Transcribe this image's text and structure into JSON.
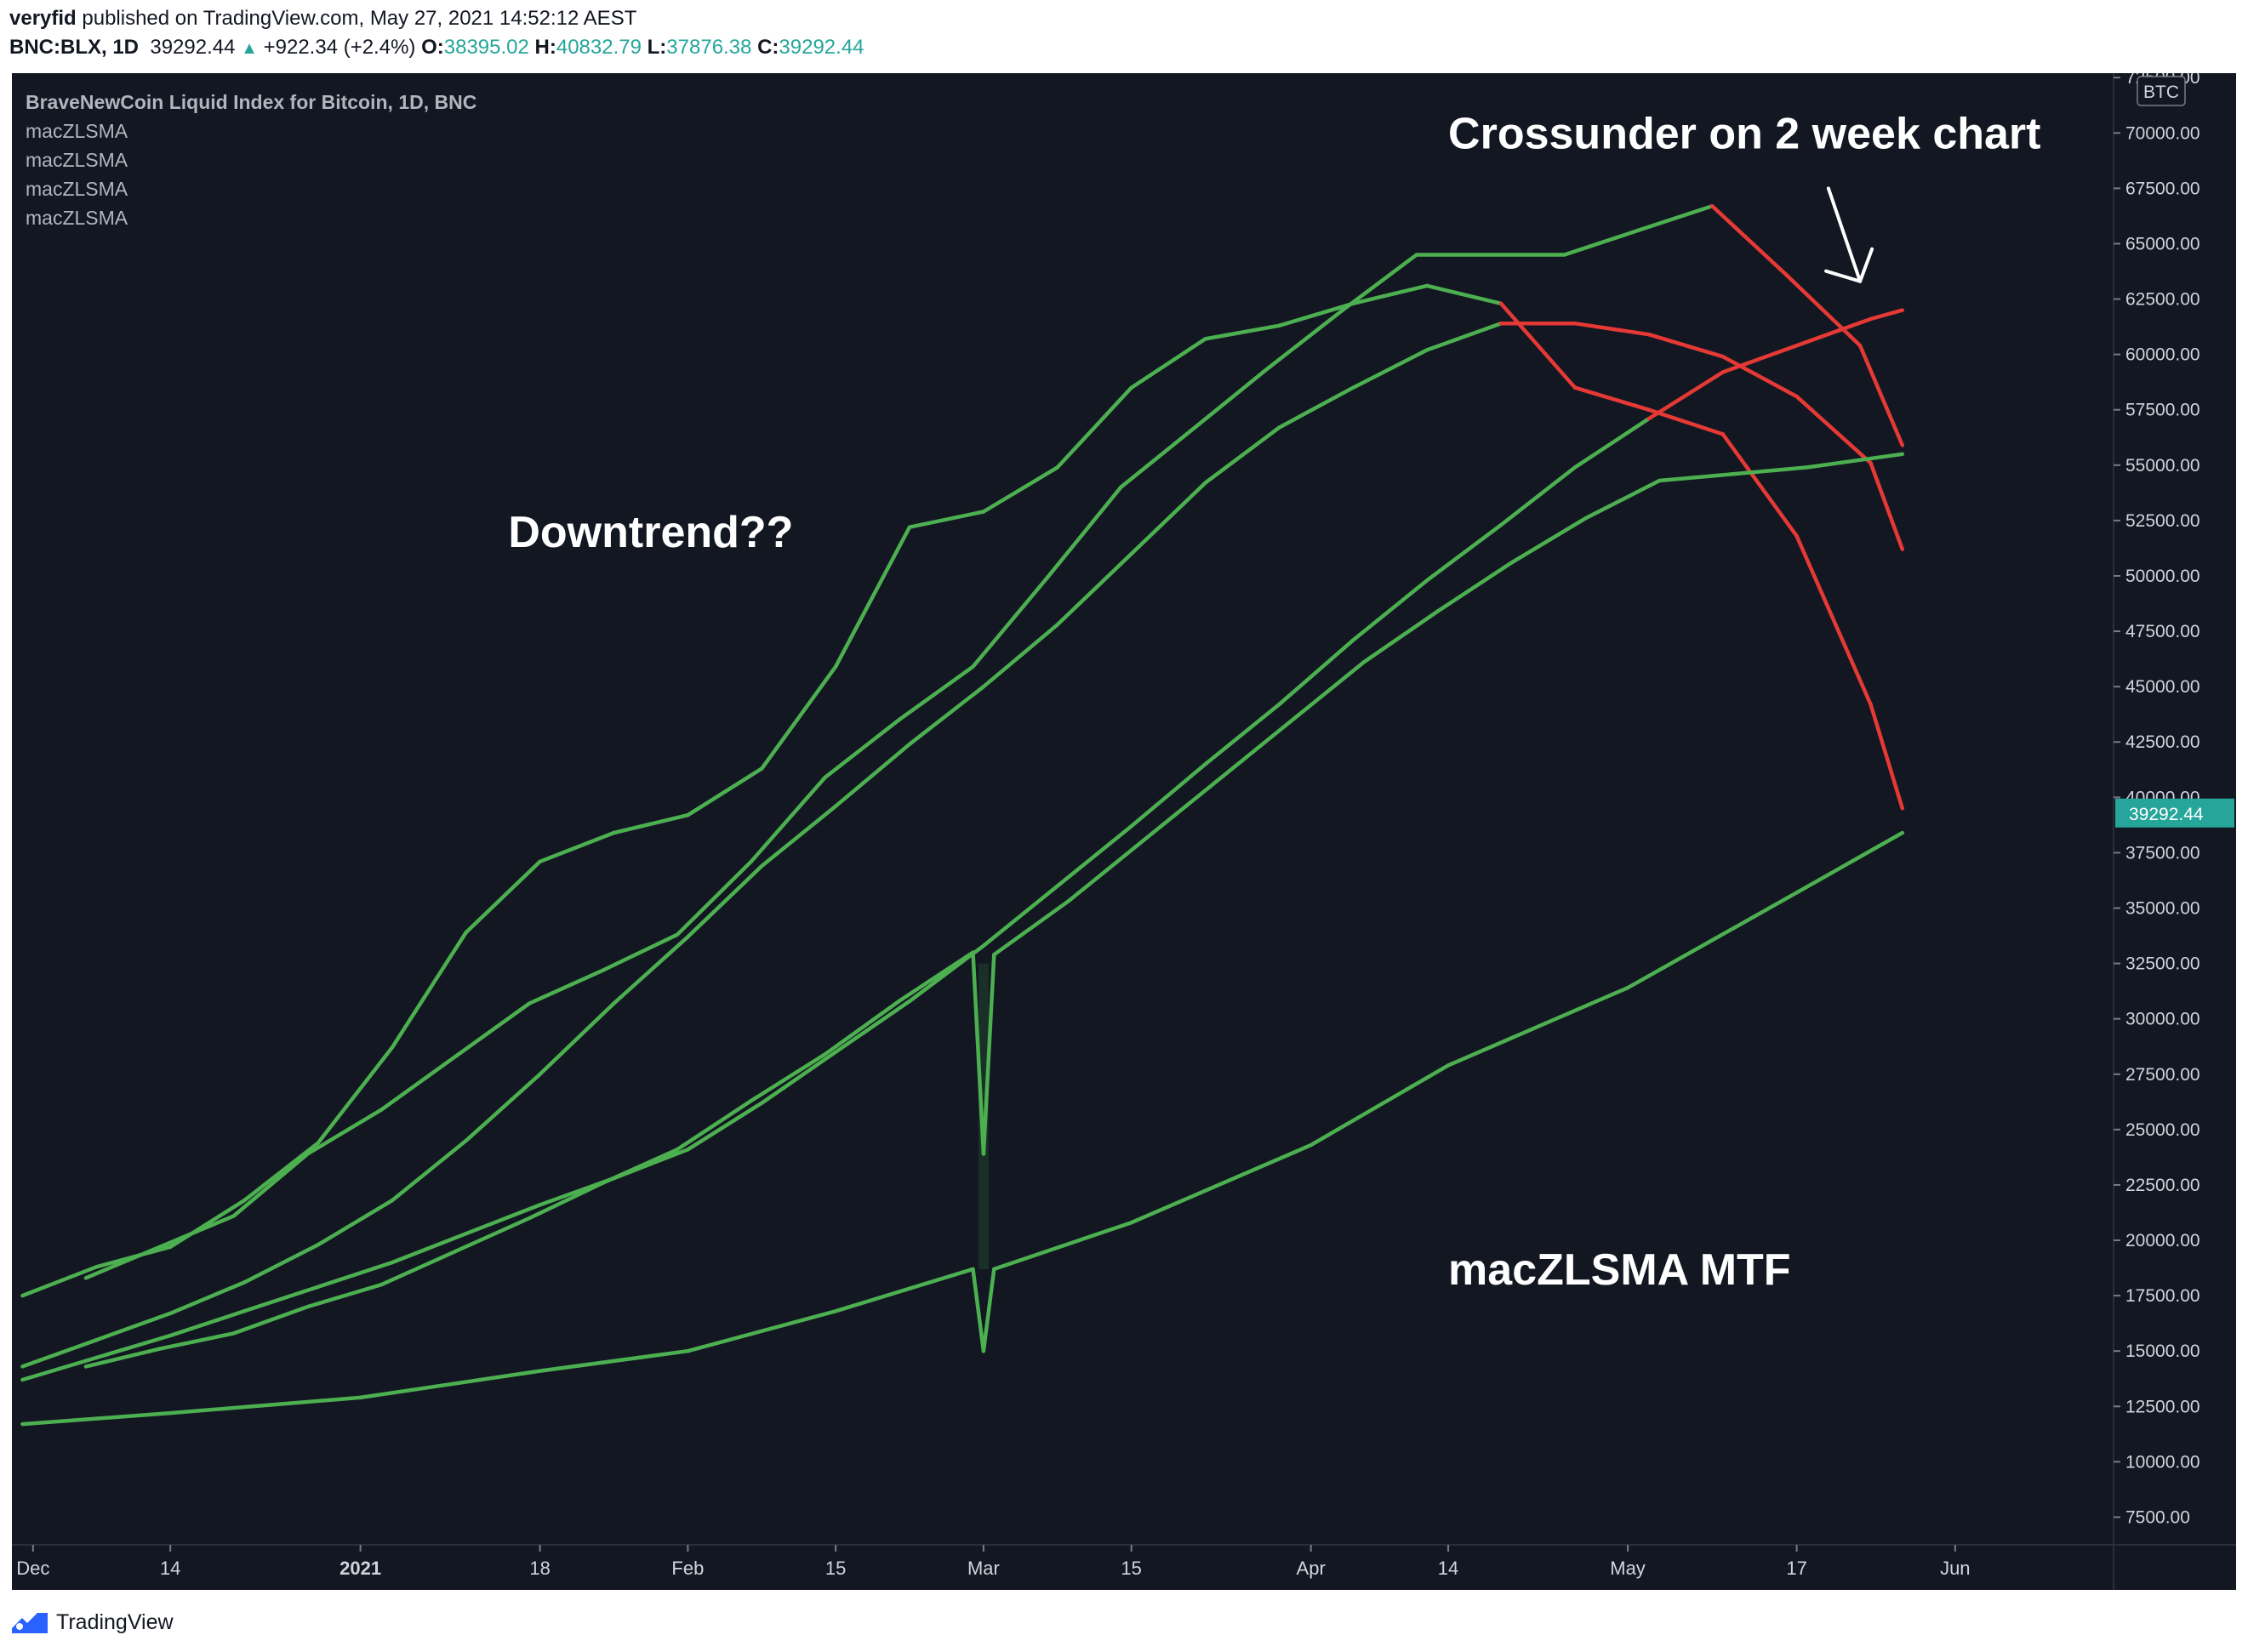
{
  "header": {
    "author": "veryfid",
    "published": "published on TradingView.com, May 27, 2021 14:52:12 AEST",
    "symbol": "BNC:BLX, 1D",
    "last": "39292.44",
    "change": "+922.34 (+2.4%)",
    "o_label": "O:",
    "o_value": "38395.02",
    "h_label": "H:",
    "h_value": "40832.79",
    "l_label": "L:",
    "l_value": "37876.38",
    "c_label": "C:",
    "c_value": "39292.44"
  },
  "footer": {
    "brand": "TradingView"
  },
  "colors": {
    "background": "#131722",
    "bull": "#4caf50",
    "bear": "#e53935",
    "price_tag": "#26a69a"
  },
  "chart_data": {
    "type": "line",
    "title": "BraveNewCoin Liquid Index for Bitcoin, 1D, BNC",
    "legend": [
      "macZLSMA",
      "macZLSMA",
      "macZLSMA",
      "macZLSMA"
    ],
    "currency_label": "BTC",
    "last_price_label": "39292.44",
    "last_price": 39292.44,
    "ylim": [
      6250,
      72700
    ],
    "y_ticks": [
      72500,
      70000,
      67500,
      65000,
      62500,
      60000,
      57500,
      55000,
      52500,
      50000,
      47500,
      45000,
      42500,
      40000,
      37500,
      35000,
      32500,
      30000,
      27500,
      25000,
      22500,
      20000,
      17500,
      15000,
      12500,
      10000,
      7500
    ],
    "y_tick_labels": [
      "72500.00",
      "70000.00",
      "67500.00",
      "65000.00",
      "62500.00",
      "60000.00",
      "57500.00",
      "55000.00",
      "52500.00",
      "50000.00",
      "47500.00",
      "45000.00",
      "42500.00",
      "40000.00",
      "37500.00",
      "35000.00",
      "32500.00",
      "30000.00",
      "27500.00",
      "25000.00",
      "22500.00",
      "20000.00",
      "17500.00",
      "15000.00",
      "12500.00",
      "10000.00",
      "7500.00"
    ],
    "x_range": [
      "2020-11-29",
      "2021-06-16"
    ],
    "x_ticks": [
      {
        "date": "2020-12-01",
        "label": "Dec",
        "bold": false
      },
      {
        "date": "2020-12-14",
        "label": "14",
        "bold": false
      },
      {
        "date": "2021-01-01",
        "label": "2021",
        "bold": true
      },
      {
        "date": "2021-01-18",
        "label": "18",
        "bold": false
      },
      {
        "date": "2021-02-01",
        "label": "Feb",
        "bold": false
      },
      {
        "date": "2021-02-15",
        "label": "15",
        "bold": false
      },
      {
        "date": "2021-03-01",
        "label": "Mar",
        "bold": false
      },
      {
        "date": "2021-03-15",
        "label": "15",
        "bold": false
      },
      {
        "date": "2021-04-01",
        "label": "Apr",
        "bold": false
      },
      {
        "date": "2021-04-14",
        "label": "14",
        "bold": false
      },
      {
        "date": "2021-05-01",
        "label": "May",
        "bold": false
      },
      {
        "date": "2021-05-17",
        "label": "17",
        "bold": false
      },
      {
        "date": "2021-06-01",
        "label": "Jun",
        "bold": false
      }
    ],
    "series": [
      {
        "points": [
          [
            "2020-11-30",
            17500,
            "bull"
          ],
          [
            "2020-12-07",
            18800,
            "bull"
          ],
          [
            "2020-12-14",
            19700,
            "bull"
          ],
          [
            "2020-12-21",
            21800,
            "bull"
          ],
          [
            "2020-12-28",
            24400,
            "bull"
          ],
          [
            "2021-01-04",
            28700,
            "bull"
          ],
          [
            "2021-01-11",
            33900,
            "bull"
          ],
          [
            "2021-01-18",
            37100,
            "bull"
          ],
          [
            "2021-01-25",
            38400,
            "bull"
          ],
          [
            "2021-02-01",
            39200,
            "bull"
          ],
          [
            "2021-02-08",
            41300,
            "bull"
          ],
          [
            "2021-02-15",
            45900,
            "bull"
          ],
          [
            "2021-02-22",
            52200,
            "bull"
          ],
          [
            "2021-03-01",
            52900,
            "bull"
          ],
          [
            "2021-03-08",
            54900,
            "bull"
          ],
          [
            "2021-03-15",
            58500,
            "bull"
          ],
          [
            "2021-03-22",
            60700,
            "bull"
          ],
          [
            "2021-03-29",
            61300,
            "bull"
          ],
          [
            "2021-04-05",
            62300,
            "bull"
          ],
          [
            "2021-04-12",
            63100,
            "bull"
          ],
          [
            "2021-04-19",
            62300,
            "bull"
          ],
          [
            "2021-04-26",
            58500,
            "bear"
          ],
          [
            "2021-05-03",
            57500,
            "bear"
          ],
          [
            "2021-05-10",
            56400,
            "bear"
          ],
          [
            "2021-05-17",
            51800,
            "bear"
          ],
          [
            "2021-05-24",
            44200,
            "bear"
          ],
          [
            "2021-05-27",
            39500,
            "bear"
          ]
        ]
      },
      {
        "points": [
          [
            "2020-12-06",
            18300,
            "bull"
          ],
          [
            "2020-12-13",
            19700,
            "bull"
          ],
          [
            "2020-12-20",
            21100,
            "bull"
          ],
          [
            "2020-12-27",
            23900,
            "bull"
          ],
          [
            "2021-01-03",
            25900,
            "bull"
          ],
          [
            "2021-01-10",
            28300,
            "bull"
          ],
          [
            "2021-01-17",
            30700,
            "bull"
          ],
          [
            "2021-01-24",
            32200,
            "bull"
          ],
          [
            "2021-01-31",
            33800,
            "bull"
          ],
          [
            "2021-02-07",
            37100,
            "bull"
          ],
          [
            "2021-02-14",
            40900,
            "bull"
          ],
          [
            "2021-02-21",
            43500,
            "bull"
          ],
          [
            "2021-02-28",
            45900,
            "bull"
          ],
          [
            "2021-03-07",
            49900,
            "bull"
          ],
          [
            "2021-03-14",
            54000,
            "bull"
          ],
          [
            "2021-03-21",
            56700,
            "bull"
          ],
          [
            "2021-03-28",
            59400,
            "bull"
          ],
          [
            "2021-04-04",
            62000,
            "bull"
          ],
          [
            "2021-04-11",
            64500,
            "bull"
          ],
          [
            "2021-04-18",
            64500,
            "bull"
          ],
          [
            "2021-04-25",
            64500,
            "bull"
          ],
          [
            "2021-05-02",
            65600,
            "bull"
          ],
          [
            "2021-05-09",
            66700,
            "bull"
          ],
          [
            "2021-05-16",
            63600,
            "bear"
          ],
          [
            "2021-05-23",
            60400,
            "bear"
          ],
          [
            "2021-05-27",
            55900,
            "bear"
          ]
        ]
      },
      {
        "points": [
          [
            "2020-11-30",
            14300,
            "bull"
          ],
          [
            "2020-12-07",
            15500,
            "bull"
          ],
          [
            "2020-12-14",
            16700,
            "bull"
          ],
          [
            "2020-12-21",
            18100,
            "bull"
          ],
          [
            "2020-12-28",
            19800,
            "bull"
          ],
          [
            "2021-01-04",
            21800,
            "bull"
          ],
          [
            "2021-01-11",
            24500,
            "bull"
          ],
          [
            "2021-01-18",
            27500,
            "bull"
          ],
          [
            "2021-01-25",
            30700,
            "bull"
          ],
          [
            "2021-02-01",
            33700,
            "bull"
          ],
          [
            "2021-02-08",
            36900,
            "bull"
          ],
          [
            "2021-02-15",
            39600,
            "bull"
          ],
          [
            "2021-02-22",
            42400,
            "bull"
          ],
          [
            "2021-03-01",
            45000,
            "bull"
          ],
          [
            "2021-03-08",
            47800,
            "bull"
          ],
          [
            "2021-03-15",
            51000,
            "bull"
          ],
          [
            "2021-03-22",
            54200,
            "bull"
          ],
          [
            "2021-03-29",
            56700,
            "bull"
          ],
          [
            "2021-04-05",
            58500,
            "bull"
          ],
          [
            "2021-04-12",
            60200,
            "bull"
          ],
          [
            "2021-04-19",
            61400,
            "bull"
          ],
          [
            "2021-04-26",
            61400,
            "bear"
          ],
          [
            "2021-05-03",
            60900,
            "bear"
          ],
          [
            "2021-05-10",
            59900,
            "bear"
          ],
          [
            "2021-05-17",
            58100,
            "bear"
          ],
          [
            "2021-05-24",
            55100,
            "bear"
          ],
          [
            "2021-05-27",
            51200,
            "bear"
          ]
        ]
      },
      {
        "points": [
          [
            "2020-11-30",
            13700,
            "bull"
          ],
          [
            "2020-12-07",
            14700,
            "bull"
          ],
          [
            "2020-12-14",
            15700,
            "bull"
          ],
          [
            "2020-12-21",
            16800,
            "bull"
          ],
          [
            "2020-12-28",
            17900,
            "bull"
          ],
          [
            "2021-01-04",
            19000,
            "bull"
          ],
          [
            "2021-01-11",
            20300,
            "bull"
          ],
          [
            "2021-01-18",
            21600,
            "bull"
          ],
          [
            "2021-01-25",
            22800,
            "bull"
          ],
          [
            "2021-02-01",
            24100,
            "bull"
          ],
          [
            "2021-02-08",
            26200,
            "bull"
          ],
          [
            "2021-02-15",
            28500,
            "bull"
          ],
          [
            "2021-02-22",
            30800,
            "bull"
          ],
          [
            "2021-03-01",
            33300,
            "bull"
          ],
          [
            "2021-03-08",
            36000,
            "bull"
          ],
          [
            "2021-03-15",
            38700,
            "bull"
          ],
          [
            "2021-03-22",
            41500,
            "bull"
          ],
          [
            "2021-03-29",
            44200,
            "bull"
          ],
          [
            "2021-04-05",
            47100,
            "bull"
          ],
          [
            "2021-04-12",
            49800,
            "bull"
          ],
          [
            "2021-04-19",
            52300,
            "bull"
          ],
          [
            "2021-04-26",
            54900,
            "bull"
          ],
          [
            "2021-05-03",
            57100,
            "bull"
          ],
          [
            "2021-05-10",
            59200,
            "bear"
          ],
          [
            "2021-05-17",
            60400,
            "bear"
          ],
          [
            "2021-05-24",
            61600,
            "bear"
          ],
          [
            "2021-05-27",
            62000,
            "bear"
          ]
        ]
      },
      {
        "points": [
          [
            "2020-12-06",
            14300,
            "bull"
          ],
          [
            "2020-12-13",
            15100,
            "bull"
          ],
          [
            "2020-12-20",
            15800,
            "bull"
          ],
          [
            "2020-12-27",
            17000,
            "bull"
          ],
          [
            "2021-01-03",
            18000,
            "bull"
          ],
          [
            "2021-01-10",
            19500,
            "bull"
          ],
          [
            "2021-01-17",
            21000,
            "bull"
          ],
          [
            "2021-01-24",
            22600,
            "bull"
          ],
          [
            "2021-01-31",
            24100,
            "bull"
          ],
          [
            "2021-02-07",
            26300,
            "bull"
          ],
          [
            "2021-02-14",
            28400,
            "bull"
          ],
          [
            "2021-02-21",
            30800,
            "bull"
          ],
          [
            "2021-02-28",
            33000,
            "bull"
          ],
          [
            "2021-03-01",
            23900,
            "bull"
          ],
          [
            "2021-03-02",
            32900,
            "bull"
          ],
          [
            "2021-03-09",
            35300,
            "bull"
          ],
          [
            "2021-03-16",
            38000,
            "bull"
          ],
          [
            "2021-03-23",
            40700,
            "bull"
          ],
          [
            "2021-03-30",
            43400,
            "bull"
          ],
          [
            "2021-04-06",
            46100,
            "bull"
          ],
          [
            "2021-04-13",
            48400,
            "bull"
          ],
          [
            "2021-04-20",
            50600,
            "bull"
          ],
          [
            "2021-04-27",
            52600,
            "bull"
          ],
          [
            "2021-05-04",
            54300,
            "bull"
          ],
          [
            "2021-05-11",
            54600,
            "bull"
          ],
          [
            "2021-05-18",
            54900,
            "bull"
          ],
          [
            "2021-05-27",
            55500,
            "bull"
          ]
        ]
      },
      {
        "points": [
          [
            "2020-11-30",
            11700,
            "bull"
          ],
          [
            "2020-12-14",
            12200,
            "bull"
          ],
          [
            "2021-01-01",
            12900,
            "bull"
          ],
          [
            "2021-01-18",
            14100,
            "bull"
          ],
          [
            "2021-02-01",
            15000,
            "bull"
          ],
          [
            "2021-02-15",
            16800,
            "bull"
          ],
          [
            "2021-02-28",
            18700,
            "bull"
          ],
          [
            "2021-03-01",
            15000,
            "bull"
          ],
          [
            "2021-03-02",
            18700,
            "bull"
          ],
          [
            "2021-03-15",
            20800,
            "bull"
          ],
          [
            "2021-04-01",
            24300,
            "bull"
          ],
          [
            "2021-04-14",
            27900,
            "bull"
          ],
          [
            "2021-05-01",
            31400,
            "bull"
          ],
          [
            "2021-05-17",
            35700,
            "bull"
          ],
          [
            "2021-05-27",
            38400,
            "bull"
          ]
        ]
      }
    ],
    "annotations": [
      {
        "text": "Downtrend??",
        "date": "2021-01-15",
        "y": 52000
      },
      {
        "text": "Crossunder on 2 week chart",
        "date": "2021-04-14",
        "y": 70000
      },
      {
        "text": "macZLSMA MTF",
        "date": "2021-04-14",
        "y": 18700
      }
    ]
  }
}
